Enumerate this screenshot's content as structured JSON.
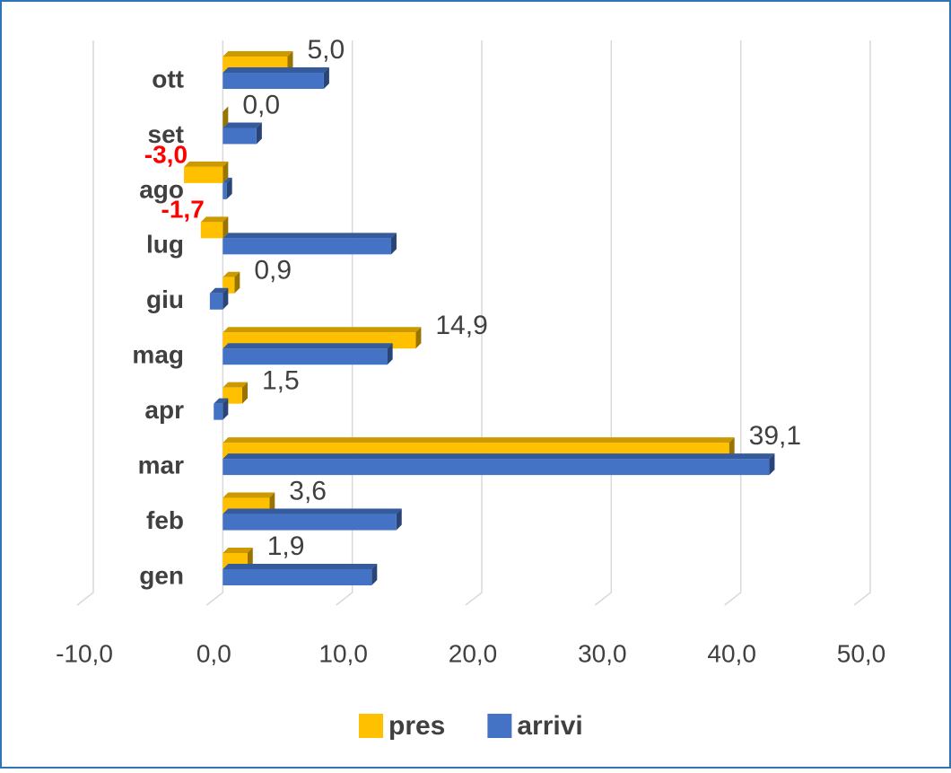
{
  "chart_data": {
    "type": "bar",
    "orientation": "horizontal",
    "categories": [
      "gen",
      "feb",
      "mar",
      "apr",
      "mag",
      "giu",
      "lug",
      "ago",
      "set",
      "ott"
    ],
    "series": [
      {
        "name": "pres",
        "color": "#ffc000",
        "values": [
          1.9,
          3.6,
          39.1,
          1.5,
          14.9,
          0.9,
          -1.7,
          -3.0,
          0.0,
          5.0
        ],
        "value_labels": [
          "1,9",
          "3,6",
          "39,1",
          "1,5",
          "14,9",
          "0,9",
          "-1,7",
          "-3,0",
          "0,0",
          "5,0"
        ]
      },
      {
        "name": "arrivi",
        "color": "#4472c4",
        "values": [
          11.5,
          13.4,
          42.2,
          -0.7,
          12.7,
          -1.0,
          13.0,
          0.3,
          2.6,
          7.8
        ]
      }
    ],
    "negative_label_color": "#ff0000",
    "xlim": [
      -10,
      50
    ],
    "xticks": [
      {
        "value": -10,
        "label": "-10,0"
      },
      {
        "value": 0,
        "label": "0,0"
      },
      {
        "value": 10,
        "label": "10,0"
      },
      {
        "value": 20,
        "label": "20,0"
      },
      {
        "value": 30,
        "label": "30,0"
      },
      {
        "value": 40,
        "label": "40,0"
      },
      {
        "value": 50,
        "label": "50,0"
      }
    ],
    "grid": true,
    "legend": "bottom"
  }
}
